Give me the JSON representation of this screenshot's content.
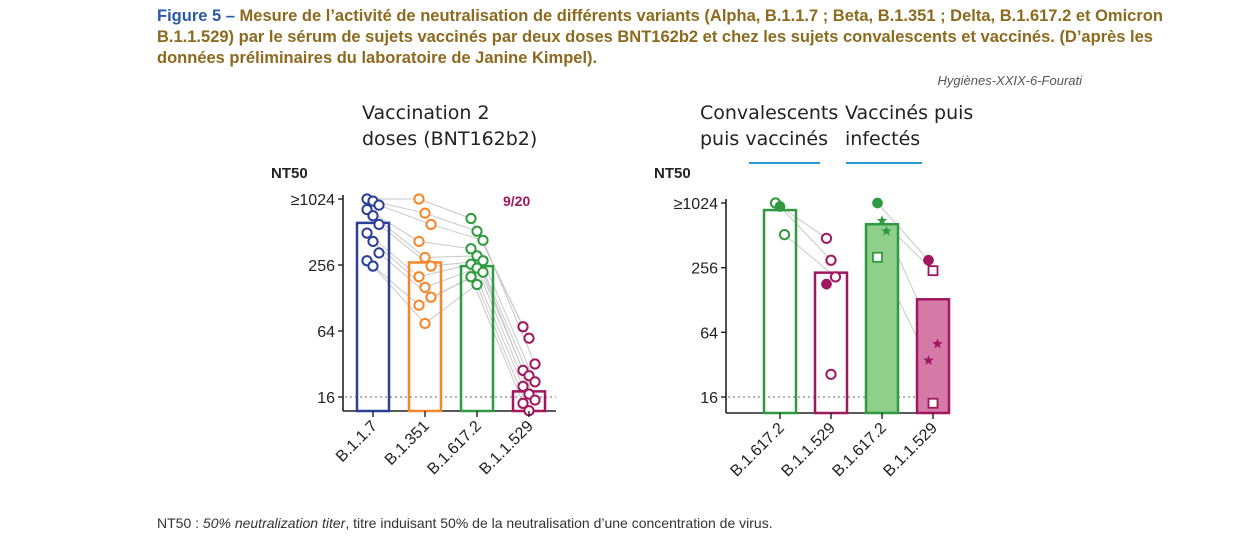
{
  "caption": {
    "figure_label": "Figure 5 –",
    "text": " Mesure de l’activité de neutralisation de différents variants (Alpha, B.1.1.7 ; Beta, B.1.351 ; Delta, B.1.617.2 et Omicron B.1.1.529) par le sérum de sujets vaccinés par deux doses BNT162b2 et chez les sujets convalescents et vaccinés. (D’après les données préliminaires du laboratoire de Janine Kimpel)."
  },
  "credit": "Hygiènes-XXIX-6-Fourati",
  "footnote": {
    "prefix": "NT50 : ",
    "italic": "50% neutralization titer",
    "suffix": ", titre induisant 50% de la neutralisation d’une concentration de virus."
  },
  "chart_data": [
    {
      "type": "bar",
      "title_lines": [
        "Vaccination 2",
        "doses (BNT162b2)"
      ],
      "ylabel": "NT50",
      "yscale": "log2",
      "ylim": [
        12,
        1024
      ],
      "yticks": [
        16,
        64,
        256,
        1024
      ],
      "yticklabels": [
        "16",
        "64",
        "256",
        "≥1024"
      ],
      "threshold": 16,
      "annotation": "9/20",
      "categories": [
        "B.1.1.7",
        "B.1.351",
        "B.1.617.2",
        "B.1.1.529"
      ],
      "colors": [
        "#2b3f97",
        "#f5862a",
        "#2f9a40",
        "#a1175f"
      ],
      "values": [
        620,
        270,
        250,
        18
      ],
      "fills": [
        "none",
        "none",
        "none",
        "none"
      ],
      "points": [
        [
          1024,
          980,
          900,
          820,
          720,
          600,
          500,
          420,
          330,
          280,
          250
        ],
        [
          1024,
          760,
          600,
          420,
          300,
          250,
          200,
          160,
          130,
          110,
          75
        ],
        [
          680,
          520,
          430,
          360,
          310,
          280,
          260,
          240,
          220,
          200,
          170
        ],
        [
          70,
          55,
          32,
          28,
          25,
          22,
          20,
          17,
          15,
          14,
          12
        ]
      ],
      "markers": [
        "circle",
        "circle",
        "circle",
        "circle"
      ],
      "grid": false,
      "legend": "none"
    },
    {
      "type": "bar",
      "group_labels": [
        [
          "Convalescents",
          "puis vaccinés"
        ],
        [
          "Vaccinés puis",
          "infectés"
        ]
      ],
      "group_line_color": "#2b9bd6",
      "ylabel": "NT50",
      "yscale": "log2",
      "ylim": [
        12,
        1024
      ],
      "yticks": [
        16,
        64,
        256,
        1024
      ],
      "yticklabels": [
        "16",
        "64",
        "256",
        "≥1024"
      ],
      "threshold": 16,
      "categories": [
        "B.1.617.2",
        "B.1.1.529",
        "B.1.617.2",
        "B.1.1.529"
      ],
      "colors": [
        "#2f9a40",
        "#a1175f",
        "#2f9a40",
        "#a1175f"
      ],
      "values": [
        880,
        230,
        650,
        130
      ],
      "fills": [
        "none",
        "none",
        "#8fcf8b",
        "#d47aa6"
      ],
      "points": [
        [
          1024,
          950,
          520
        ],
        [
          480,
          300,
          210,
          180,
          26
        ],
        [
          1024,
          700,
          560,
          320
        ],
        [
          300,
          240,
          50,
          35,
          14
        ]
      ],
      "point_styles": [
        [
          "circle-open",
          "circle-filled",
          "circle-open"
        ],
        [
          "circle-open",
          "circle-open",
          "circle-open",
          "circle-filled",
          "circle-open"
        ],
        [
          "circle-filled",
          "star",
          "star",
          "square-open"
        ],
        [
          "circle-filled",
          "square-open",
          "star",
          "star",
          "square-open"
        ]
      ],
      "grid": false,
      "legend": "none"
    }
  ]
}
